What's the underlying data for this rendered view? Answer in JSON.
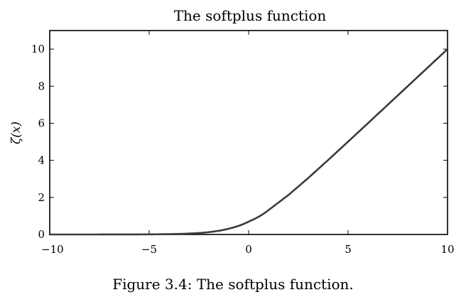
{
  "chart_data": {
    "type": "line",
    "title": "The softplus function",
    "xlabel": "",
    "ylabel": "ζ(x)",
    "xlim": [
      -10,
      10
    ],
    "ylim": [
      0,
      11
    ],
    "xticks": [
      -10,
      -5,
      0,
      5,
      10
    ],
    "xtick_labels": [
      "−10",
      "−5",
      "0",
      "5",
      "10"
    ],
    "yticks": [
      0,
      2,
      4,
      6,
      8,
      10
    ],
    "ytick_labels": [
      "0",
      "2",
      "4",
      "6",
      "8",
      "10"
    ],
    "grid": false,
    "series": [
      {
        "color": "#3a3a3a",
        "x": [
          -10,
          -9,
          -8,
          -7,
          -6,
          -5,
          -4,
          -3,
          -2,
          -1,
          0,
          1,
          2,
          3,
          4,
          5,
          6,
          7,
          8,
          9,
          10
        ],
        "y": [
          4.54e-05,
          0.000123,
          0.000335,
          0.000911,
          0.00248,
          0.00672,
          0.0181,
          0.0486,
          0.127,
          0.313,
          0.693,
          1.313,
          2.127,
          3.049,
          4.018,
          5.007,
          6.002,
          7.001,
          8.0,
          9.0,
          10.0
        ]
      }
    ]
  },
  "caption": "Figure 3.4: The softplus function."
}
